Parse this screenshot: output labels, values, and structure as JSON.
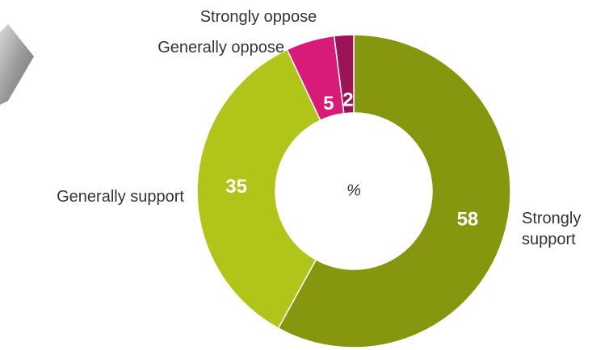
{
  "chart_data": {
    "type": "pie",
    "categories": [
      "Strongly support",
      "Generally support",
      "Generally oppose",
      "Strongly oppose"
    ],
    "values": [
      58,
      35,
      5,
      2
    ],
    "colors": [
      "#86970f",
      "#b0c41a",
      "#d81b78",
      "#9a1457"
    ],
    "center_label": "%"
  }
}
